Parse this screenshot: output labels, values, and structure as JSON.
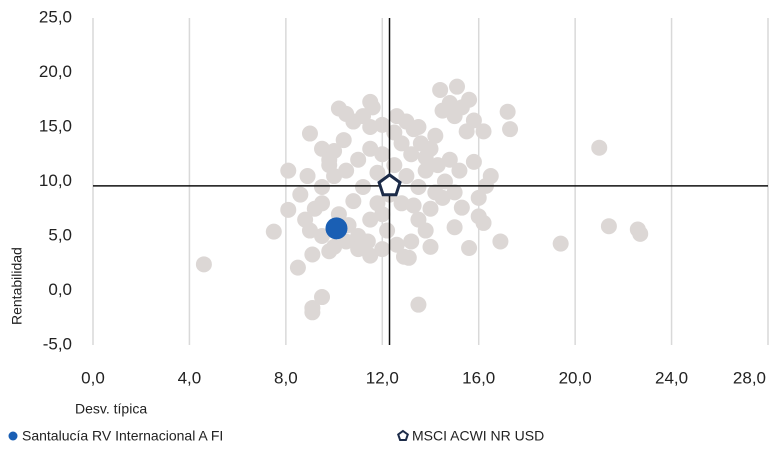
{
  "chart_data": {
    "type": "scatter",
    "x_label": "Desv. típica",
    "y_label": "Rentabilidad",
    "xlim": [
      0,
      28
    ],
    "ylim": [
      -5,
      25
    ],
    "xticks": [
      {
        "value": 0,
        "label": "0,0"
      },
      {
        "value": 4,
        "label": "4,0"
      },
      {
        "value": 8,
        "label": "8,0"
      },
      {
        "value": 12,
        "label": "12,0"
      },
      {
        "value": 16,
        "label": "16,0"
      },
      {
        "value": 20,
        "label": "20,0"
      },
      {
        "value": 24,
        "label": "24,0"
      },
      {
        "value": 28,
        "label": "28,0"
      }
    ],
    "yticks": [
      {
        "value": -5,
        "label": "-5,0"
      },
      {
        "value": 0,
        "label": "0,0"
      },
      {
        "value": 5,
        "label": "5,0"
      },
      {
        "value": 10,
        "label": "10,0"
      },
      {
        "value": 15,
        "label": "15,0"
      },
      {
        "value": 20,
        "label": "20,0"
      },
      {
        "value": 25,
        "label": "25,0"
      }
    ],
    "grid": true,
    "series": [
      {
        "color": "#dcd7d5",
        "x": [
          4.6,
          7.5,
          8.1,
          8.1,
          8.5,
          9.5,
          9.1,
          9.1,
          13.5,
          11.5,
          14.4,
          15.1,
          17.2,
          17.3,
          16.9,
          19.4,
          21.0,
          21.4,
          22.6,
          22.7,
          15.6,
          16.2,
          16.5,
          13.1,
          12.9,
          11.5,
          9.1,
          9.8,
          9.0,
          9.5,
          9.8,
          10.2,
          10.5,
          10.8,
          11.2,
          11.6,
          12.0,
          12.5,
          13.0,
          13.3,
          13.6,
          14.0,
          14.5,
          14.8,
          15.0,
          15.3,
          15.6,
          15.8,
          16.2,
          15.5,
          14.2,
          13.8,
          14.3,
          14.8,
          15.2,
          15.8,
          16.0,
          16.3,
          15.0,
          14.5,
          14.0,
          13.5,
          13.8,
          13.2,
          14.0,
          15.0,
          16.0,
          15.3,
          12.8,
          12.0,
          11.5,
          11.0,
          10.5,
          10.0,
          9.5,
          9.0,
          8.8,
          9.2,
          8.6,
          8.9,
          9.5,
          10.0,
          10.5,
          11.0,
          11.5,
          12.0,
          12.5,
          13.0,
          13.5,
          12.8,
          11.2,
          10.8,
          10.2,
          11.8,
          12.3,
          13.3,
          13.8,
          10.4,
          9.8,
          12.2,
          12.6,
          11.0,
          9.5,
          11.5,
          12.6,
          13.5,
          14.6,
          14.2,
          12.0,
          13.2,
          10.0,
          11.8,
          11.4,
          10.6
        ],
        "values": [
          2.4,
          5.4,
          7.4,
          11.0,
          2.1,
          -0.6,
          -1.6,
          -2.0,
          -1.3,
          17.3,
          18.4,
          18.7,
          16.4,
          14.8,
          4.5,
          4.3,
          13.1,
          5.9,
          5.6,
          5.2,
          3.9,
          6.2,
          10.5,
          3.0,
          3.1,
          3.2,
          3.3,
          3.6,
          14.4,
          13.0,
          12.0,
          16.7,
          16.2,
          15.5,
          16.0,
          16.8,
          15.2,
          14.5,
          15.5,
          14.8,
          13.5,
          13.0,
          16.5,
          17.2,
          16.0,
          16.8,
          17.5,
          15.6,
          14.6,
          14.6,
          14.2,
          12.2,
          11.5,
          12.0,
          11.0,
          11.8,
          8.5,
          9.6,
          9.0,
          8.5,
          7.5,
          6.5,
          5.5,
          4.5,
          4.0,
          5.8,
          6.8,
          7.6,
          8.0,
          7.0,
          6.5,
          5.0,
          4.5,
          4.0,
          5.0,
          5.5,
          6.5,
          7.5,
          8.8,
          10.5,
          9.5,
          10.5,
          11.0,
          12.0,
          13.0,
          12.5,
          11.5,
          10.5,
          9.5,
          13.5,
          9.5,
          8.2,
          7.0,
          10.8,
          8.8,
          7.8,
          11.0,
          13.8,
          11.5,
          5.5,
          4.2,
          3.8,
          8.0,
          15.0,
          16.0,
          15.0,
          10.0,
          9.0,
          3.8,
          12.5,
          12.8,
          8.0,
          4.5,
          6.0
        ]
      },
      {
        "name": "Santalucía RV Internacional A FI",
        "color": "#1a5fb4",
        "marker": "circle",
        "x": [
          10.1
        ],
        "values": [
          5.7
        ]
      },
      {
        "name": "MSCI ACWI NR USD",
        "color": "#1c2b48",
        "marker": "pentagon",
        "x": [
          12.3
        ],
        "values": [
          9.6
        ]
      }
    ]
  }
}
